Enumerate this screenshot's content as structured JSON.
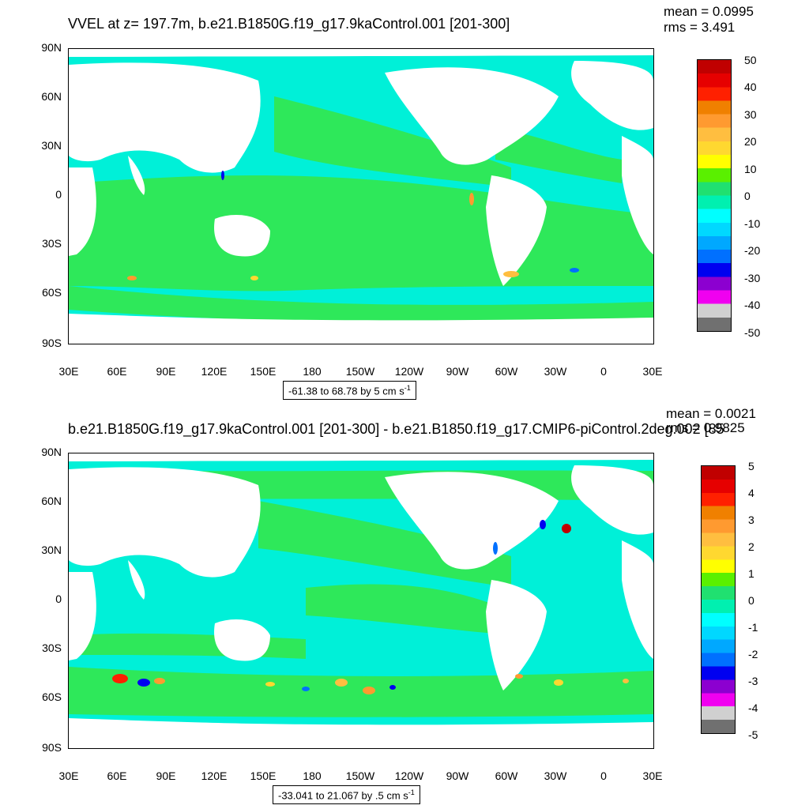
{
  "panels": [
    {
      "title": "VVEL at z= 197.7m, b.e21.B1850G.f19_g17.9kaControl.001 [201-300]",
      "mean": "mean = 0.0995",
      "rms": "rms = 3.491",
      "range_text": "-61.38 to 68.78 by 5 cm s",
      "range_unit_sup": "-1",
      "colorbar_labels": [
        "50",
        "40",
        "30",
        "20",
        "10",
        "0",
        "-10",
        "-20",
        "-30",
        "-40",
        "-50"
      ]
    },
    {
      "title": "b.e21.B1850G.f19_g17.9kaControl.001 [201-300] - b.e21.B1850.f19_g17.CMIP6-piControl.2deg.002 [85",
      "mean": "mean = 0.0021",
      "rms": "rms = 0.9825",
      "range_text": "-33.041 to 21.067 by .5 cm s",
      "range_unit_sup": "-1",
      "colorbar_labels": [
        "5",
        "4",
        "3",
        "2",
        "1",
        "0",
        "-1",
        "-2",
        "-3",
        "-4",
        "-5"
      ]
    }
  ],
  "lat_labels": [
    "90N",
    "60N",
    "30N",
    "0",
    "30S",
    "60S",
    "90S"
  ],
  "lon_labels": [
    "30E",
    "60E",
    "90E",
    "120E",
    "150E",
    "180",
    "150W",
    "120W",
    "90W",
    "60W",
    "30W",
    "0",
    "30E"
  ],
  "colors": {
    "ocean_main": "#00f0d8",
    "ocean_green": "#2ee85a",
    "land": "#ffffff",
    "cbar": [
      "#c00000",
      "#e60000",
      "#ff2000",
      "#f08000",
      "#ff9a30",
      "#ffbe40",
      "#ffd830",
      "#ffff00",
      "#5af000",
      "#20e070",
      "#00f0b0",
      "#00ffff",
      "#00d8ff",
      "#00a8ff",
      "#0070ff",
      "#0000f0",
      "#8c00d0",
      "#f000f0",
      "#d0d0d0",
      "#707070"
    ]
  }
}
